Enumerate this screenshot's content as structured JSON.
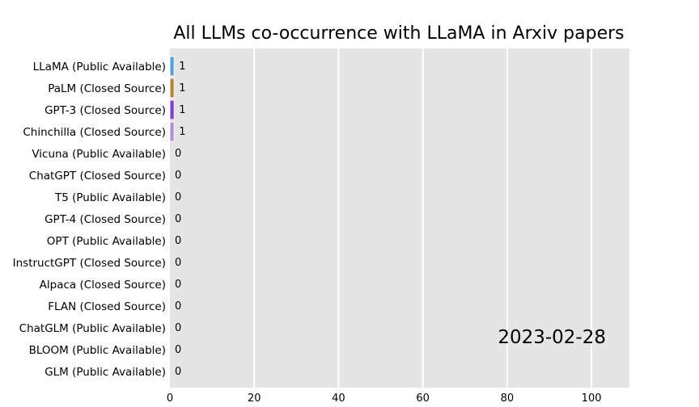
{
  "chart_data": {
    "type": "bar",
    "orientation": "horizontal",
    "title": "All LLMs co-occurrence with LLaMA in Arxiv papers",
    "date_label": "2023-02-28",
    "xlim": [
      0,
      109
    ],
    "xticks": [
      0,
      20,
      40,
      60,
      80,
      100
    ],
    "grid": true,
    "background_color": "#e5e5e5",
    "categories": [
      "LLaMA (Public Available)",
      "PaLM (Closed Source)",
      "GPT-3 (Closed Source)",
      "Chinchilla (Closed Source)",
      "Vicuna (Public Available)",
      "ChatGPT (Closed Source)",
      "T5 (Public Available)",
      "GPT-4 (Closed Source)",
      "OPT (Public Available)",
      "InstructGPT (Closed Source)",
      "Alpaca (Closed Source)",
      "FLAN (Closed Source)",
      "ChatGLM (Public Available)",
      "BLOOM (Public Available)",
      "GLM (Public Available)"
    ],
    "values": [
      1,
      1,
      1,
      1,
      0,
      0,
      0,
      0,
      0,
      0,
      0,
      0,
      0,
      0,
      0
    ],
    "colors": [
      "#4aa3e8",
      "#b8862f",
      "#7b3fe4",
      "#b48ce8",
      "#888888",
      "#888888",
      "#888888",
      "#888888",
      "#888888",
      "#888888",
      "#888888",
      "#888888",
      "#888888",
      "#888888",
      "#888888"
    ]
  }
}
